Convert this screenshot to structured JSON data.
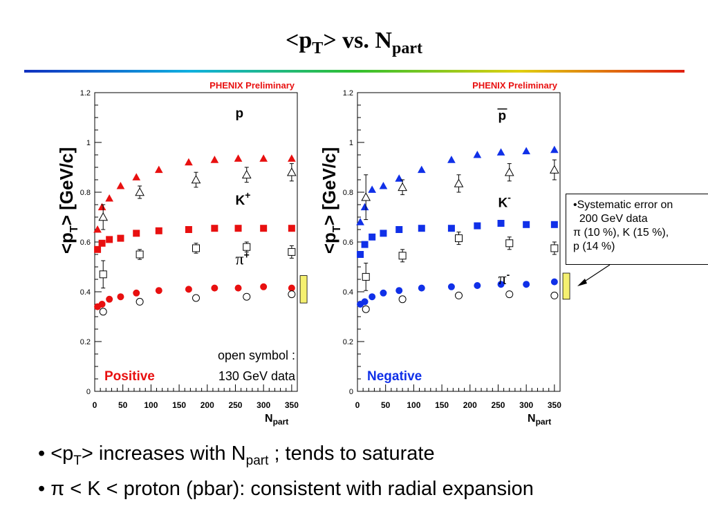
{
  "title": {
    "main": "<p",
    "sub_t": "T",
    "rest": "> vs. N",
    "sub_part": "part"
  },
  "colors": {
    "positive": "#e81010",
    "negative": "#1030e8",
    "syst_band": "#f5f070",
    "rule_gradient": [
      "#1030c0",
      "#10b0e0",
      "#30c030",
      "#e0d010",
      "#e02010"
    ]
  },
  "chart_data": [
    {
      "type": "scatter",
      "panel": "positive",
      "banner": "PHENIX Preliminary",
      "charge_label": "Positive",
      "ylabel": "<p_T> [GeV/c]",
      "xlabel": "N_part",
      "xlim": [
        0,
        360
      ],
      "ylim": [
        0,
        1.2
      ],
      "xticks": [
        0,
        50,
        100,
        150,
        200,
        250,
        300,
        350
      ],
      "yticks": [
        0,
        0.2,
        0.4,
        0.6,
        0.8,
        1,
        1.2
      ],
      "open_symbol_note": [
        "open symbol :",
        "130 GeV data"
      ],
      "series": [
        {
          "name": "p",
          "marker": "triangle",
          "filled": true,
          "x": [
            5,
            13,
            26,
            46,
            74,
            114,
            167,
            213,
            255,
            300,
            350
          ],
          "y": [
            0.65,
            0.74,
            0.775,
            0.825,
            0.86,
            0.89,
            0.92,
            0.93,
            0.935,
            0.935,
            0.935
          ]
        },
        {
          "name": "K+",
          "marker": "square",
          "filled": true,
          "x": [
            5,
            13,
            26,
            46,
            74,
            114,
            167,
            213,
            255,
            300,
            350
          ],
          "y": [
            0.57,
            0.595,
            0.61,
            0.615,
            0.635,
            0.645,
            0.65,
            0.655,
            0.655,
            0.655,
            0.655
          ]
        },
        {
          "name": "π+",
          "marker": "circle",
          "filled": true,
          "x": [
            5,
            13,
            26,
            46,
            74,
            114,
            167,
            213,
            255,
            300,
            350
          ],
          "y": [
            0.34,
            0.35,
            0.37,
            0.38,
            0.395,
            0.405,
            0.41,
            0.415,
            0.415,
            0.42,
            0.415
          ]
        },
        {
          "name": "p 130 GeV",
          "marker": "triangle",
          "filled": false,
          "x": [
            15,
            80,
            180,
            270,
            350
          ],
          "y": [
            0.7,
            0.8,
            0.85,
            0.87,
            0.88
          ],
          "err": [
            0.05,
            0.025,
            0.03,
            0.03,
            0.035
          ]
        },
        {
          "name": "K+ 130 GeV",
          "marker": "square",
          "filled": false,
          "x": [
            15,
            80,
            180,
            270,
            350
          ],
          "y": [
            0.47,
            0.55,
            0.575,
            0.58,
            0.56
          ],
          "err": [
            0.055,
            0.02,
            0.02,
            0.02,
            0.025
          ]
        },
        {
          "name": "π+ 130 GeV",
          "marker": "circle",
          "filled": false,
          "x": [
            15,
            80,
            180,
            270,
            350
          ],
          "y": [
            0.32,
            0.36,
            0.375,
            0.38,
            0.39
          ]
        }
      ],
      "labels": [
        {
          "text": "p",
          "x": 250,
          "y": 1.1
        },
        {
          "text": "K",
          "sup": "+",
          "x": 250,
          "y": 0.75
        },
        {
          "text": "π",
          "sup": "+",
          "x": 250,
          "y": 0.51,
          "serif": true
        }
      ],
      "syst_band": {
        "x": 365,
        "y0": 0.355,
        "y1": 0.465
      }
    },
    {
      "type": "scatter",
      "panel": "negative",
      "banner": "PHENIX Preliminary",
      "charge_label": "Negative",
      "ylabel": "<p_T> [GeV/c]",
      "xlabel": "N_part",
      "xlim": [
        0,
        360
      ],
      "ylim": [
        0,
        1.2
      ],
      "xticks": [
        0,
        50,
        100,
        150,
        200,
        250,
        300,
        350
      ],
      "yticks": [
        0,
        0.2,
        0.4,
        0.6,
        0.8,
        1,
        1.2
      ],
      "series": [
        {
          "name": "pbar",
          "marker": "triangle",
          "filled": true,
          "x": [
            5,
            13,
            26,
            46,
            74,
            114,
            167,
            213,
            255,
            300,
            350
          ],
          "y": [
            0.68,
            0.74,
            0.81,
            0.825,
            0.855,
            0.89,
            0.93,
            0.95,
            0.96,
            0.965,
            0.97
          ]
        },
        {
          "name": "K-",
          "marker": "square",
          "filled": true,
          "x": [
            5,
            13,
            26,
            46,
            74,
            114,
            167,
            213,
            255,
            300,
            350
          ],
          "y": [
            0.55,
            0.59,
            0.62,
            0.635,
            0.65,
            0.655,
            0.655,
            0.665,
            0.675,
            0.67,
            0.67
          ]
        },
        {
          "name": "π-",
          "marker": "circle",
          "filled": true,
          "x": [
            5,
            13,
            26,
            46,
            74,
            114,
            167,
            213,
            255,
            300,
            350
          ],
          "y": [
            0.35,
            0.36,
            0.38,
            0.395,
            0.405,
            0.415,
            0.42,
            0.425,
            0.43,
            0.43,
            0.44
          ]
        },
        {
          "name": "pbar 130 GeV",
          "marker": "triangle",
          "filled": false,
          "x": [
            15,
            80,
            180,
            270,
            350
          ],
          "y": [
            0.78,
            0.82,
            0.835,
            0.88,
            0.89
          ],
          "err": [
            0.09,
            0.03,
            0.035,
            0.035,
            0.04
          ]
        },
        {
          "name": "K- 130 GeV",
          "marker": "square",
          "filled": false,
          "x": [
            15,
            80,
            180,
            270,
            350
          ],
          "y": [
            0.46,
            0.545,
            0.615,
            0.595,
            0.575
          ],
          "err": [
            0.055,
            0.025,
            0.025,
            0.025,
            0.025
          ]
        },
        {
          "name": "π- 130 GeV",
          "marker": "circle",
          "filled": false,
          "x": [
            15,
            80,
            180,
            270,
            350
          ],
          "y": [
            0.33,
            0.37,
            0.385,
            0.39,
            0.385
          ]
        }
      ],
      "labels": [
        {
          "text": "p",
          "overline": true,
          "x": 250,
          "y": 1.09
        },
        {
          "text": "K",
          "sup": "-",
          "x": 250,
          "y": 0.74
        },
        {
          "text": "π",
          "sup": "-",
          "x": 250,
          "y": 0.43,
          "serif": true
        }
      ],
      "syst_band": {
        "x": 365,
        "y0": 0.37,
        "y1": 0.475
      }
    }
  ],
  "syst_note": {
    "lines": [
      "•Systematic error on",
      "  200 GeV data",
      "π (10 %), K (15 %),",
      "p (14 %)"
    ]
  },
  "bullets": [
    {
      "prefix": "• <p",
      "sub1": "T",
      "mid": "> increases with N",
      "sub2": "part",
      "rest": " ; tends to saturate"
    },
    {
      "text": "• π < K < proton (pbar): consistent with radial expansion"
    }
  ]
}
